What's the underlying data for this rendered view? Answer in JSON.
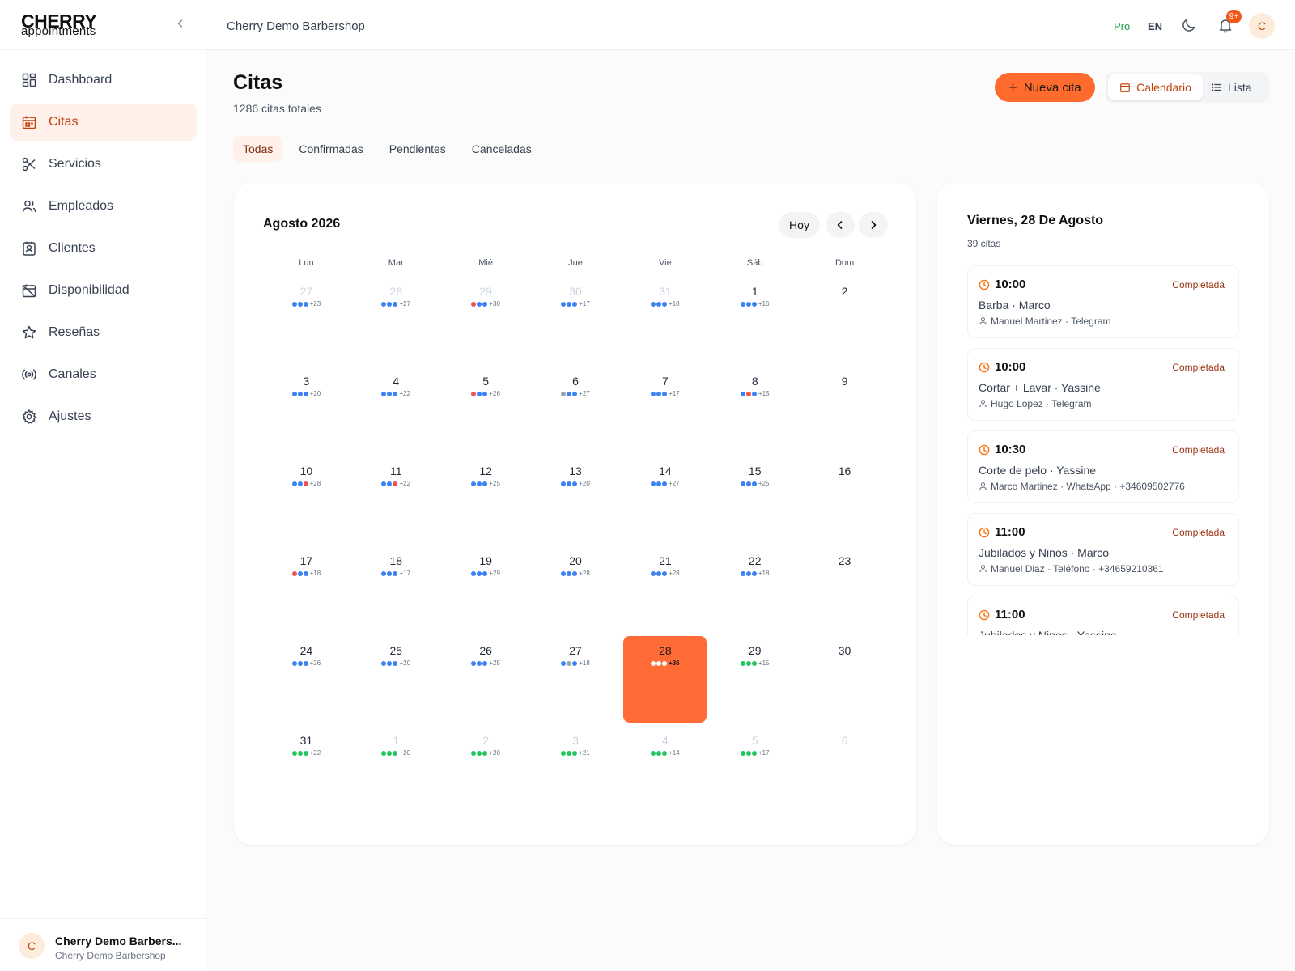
{
  "brand": {
    "logo_top": "CHERRY",
    "logo_bottom": "appointments"
  },
  "sidebar": {
    "items": [
      {
        "label": "Dashboard",
        "icon": "grid-icon"
      },
      {
        "label": "Citas",
        "icon": "calendar-icon"
      },
      {
        "label": "Servicios",
        "icon": "scissors-icon"
      },
      {
        "label": "Empleados",
        "icon": "users-icon"
      },
      {
        "label": "Clientes",
        "icon": "contact-icon"
      },
      {
        "label": "Disponibilidad",
        "icon": "calendar-off-icon"
      },
      {
        "label": "Reseñas",
        "icon": "star-icon"
      },
      {
        "label": "Canales",
        "icon": "broadcast-icon"
      },
      {
        "label": "Ajustes",
        "icon": "gear-icon"
      }
    ],
    "active_index": 1,
    "footer": {
      "avatar": "C",
      "name": "Cherry Demo Barbers...",
      "sub": "Cherry Demo Barbershop"
    }
  },
  "topbar": {
    "shop_name": "Cherry Demo Barbershop",
    "plan": "Pro",
    "lang": "EN",
    "notifications_badge": "9+",
    "avatar": "C"
  },
  "page": {
    "title": "Citas",
    "subtitle": "1286 citas totales",
    "new_button": "Nueva cita",
    "view_calendar": "Calendario",
    "view_list": "Lista"
  },
  "tabs": [
    "Todas",
    "Confirmadas",
    "Pendientes",
    "Canceladas"
  ],
  "active_tab": 0,
  "colors": {
    "accent": "#ff6b35",
    "blue": "#3b82f6",
    "red": "#f05252",
    "gray": "#9ca3af",
    "green": "#22c55e",
    "white": "#ffffff"
  },
  "calendar": {
    "month_label": "Agosto 2026",
    "today_button": "Hoy",
    "weekdays": [
      "Lun",
      "Mar",
      "Mié",
      "Jue",
      "Vie",
      "Sáb",
      "Dom"
    ],
    "days": [
      {
        "n": "27",
        "muted": true,
        "dots": [
          "blue",
          "blue",
          "blue"
        ],
        "more": "+23"
      },
      {
        "n": "28",
        "muted": true,
        "dots": [
          "blue",
          "blue",
          "blue"
        ],
        "more": "+27"
      },
      {
        "n": "29",
        "muted": true,
        "dots": [
          "red",
          "blue",
          "blue"
        ],
        "more": "+30"
      },
      {
        "n": "30",
        "muted": true,
        "dots": [
          "blue",
          "blue",
          "blue"
        ],
        "more": "+17"
      },
      {
        "n": "31",
        "muted": true,
        "dots": [
          "blue",
          "blue",
          "blue"
        ],
        "more": "+18"
      },
      {
        "n": "1",
        "muted": false,
        "dots": [
          "blue",
          "blue",
          "blue"
        ],
        "more": "+16"
      },
      {
        "n": "2",
        "muted": false,
        "dots": [],
        "more": ""
      },
      {
        "n": "3",
        "muted": false,
        "dots": [
          "blue",
          "blue",
          "blue"
        ],
        "more": "+20"
      },
      {
        "n": "4",
        "muted": false,
        "dots": [
          "blue",
          "blue",
          "blue"
        ],
        "more": "+22"
      },
      {
        "n": "5",
        "muted": false,
        "dots": [
          "red",
          "blue",
          "blue"
        ],
        "more": "+26"
      },
      {
        "n": "6",
        "muted": false,
        "dots": [
          "gray",
          "blue",
          "blue"
        ],
        "more": "+27"
      },
      {
        "n": "7",
        "muted": false,
        "dots": [
          "blue",
          "blue",
          "blue"
        ],
        "more": "+17"
      },
      {
        "n": "8",
        "muted": false,
        "dots": [
          "blue",
          "red",
          "blue"
        ],
        "more": "+15"
      },
      {
        "n": "9",
        "muted": false,
        "dots": [],
        "more": ""
      },
      {
        "n": "10",
        "muted": false,
        "dots": [
          "blue",
          "blue",
          "red"
        ],
        "more": "+28"
      },
      {
        "n": "11",
        "muted": false,
        "dots": [
          "blue",
          "blue",
          "red"
        ],
        "more": "+22"
      },
      {
        "n": "12",
        "muted": false,
        "dots": [
          "blue",
          "blue",
          "blue"
        ],
        "more": "+25"
      },
      {
        "n": "13",
        "muted": false,
        "dots": [
          "blue",
          "blue",
          "blue"
        ],
        "more": "+20"
      },
      {
        "n": "14",
        "muted": false,
        "dots": [
          "blue",
          "blue",
          "blue"
        ],
        "more": "+27"
      },
      {
        "n": "15",
        "muted": false,
        "dots": [
          "blue",
          "blue",
          "blue"
        ],
        "more": "+25"
      },
      {
        "n": "16",
        "muted": false,
        "dots": [],
        "more": ""
      },
      {
        "n": "17",
        "muted": false,
        "dots": [
          "red",
          "blue",
          "blue"
        ],
        "more": "+18"
      },
      {
        "n": "18",
        "muted": false,
        "dots": [
          "blue",
          "blue",
          "blue"
        ],
        "more": "+17"
      },
      {
        "n": "19",
        "muted": false,
        "dots": [
          "blue",
          "blue",
          "blue"
        ],
        "more": "+29"
      },
      {
        "n": "20",
        "muted": false,
        "dots": [
          "blue",
          "blue",
          "blue"
        ],
        "more": "+28"
      },
      {
        "n": "21",
        "muted": false,
        "dots": [
          "blue",
          "blue",
          "blue"
        ],
        "more": "+28"
      },
      {
        "n": "22",
        "muted": false,
        "dots": [
          "blue",
          "blue",
          "blue"
        ],
        "more": "+18"
      },
      {
        "n": "23",
        "muted": false,
        "dots": [],
        "more": ""
      },
      {
        "n": "24",
        "muted": false,
        "dots": [
          "blue",
          "blue",
          "blue"
        ],
        "more": "+26"
      },
      {
        "n": "25",
        "muted": false,
        "dots": [
          "blue",
          "blue",
          "blue"
        ],
        "more": "+20"
      },
      {
        "n": "26",
        "muted": false,
        "dots": [
          "blue",
          "blue",
          "blue"
        ],
        "more": "+25"
      },
      {
        "n": "27",
        "muted": false,
        "dots": [
          "blue",
          "gray",
          "blue"
        ],
        "more": "+18"
      },
      {
        "n": "28",
        "muted": false,
        "selected": true,
        "dots": [
          "white",
          "white",
          "white"
        ],
        "more": "+36"
      },
      {
        "n": "29",
        "muted": false,
        "dots": [
          "green",
          "green",
          "green"
        ],
        "more": "+15"
      },
      {
        "n": "30",
        "muted": false,
        "dots": [],
        "more": ""
      },
      {
        "n": "31",
        "muted": false,
        "dots": [
          "green",
          "green",
          "green"
        ],
        "more": "+22"
      },
      {
        "n": "1",
        "muted": true,
        "dots": [
          "green",
          "green",
          "green"
        ],
        "more": "+20"
      },
      {
        "n": "2",
        "muted": true,
        "dots": [
          "green",
          "green",
          "green"
        ],
        "more": "+20"
      },
      {
        "n": "3",
        "muted": true,
        "dots": [
          "green",
          "green",
          "green"
        ],
        "more": "+21"
      },
      {
        "n": "4",
        "muted": true,
        "dots": [
          "green",
          "green",
          "green"
        ],
        "more": "+14"
      },
      {
        "n": "5",
        "muted": true,
        "dots": [
          "green",
          "green",
          "green"
        ],
        "more": "+17"
      },
      {
        "n": "6",
        "muted": true,
        "dots": [],
        "more": ""
      }
    ]
  },
  "day_panel": {
    "title": "Viernes, 28 De Agosto",
    "count": "39 citas",
    "appointments": [
      {
        "time": "10:00",
        "status": "Completada",
        "service": "Barba · Marco",
        "meta": "Manuel Martinez · Telegram"
      },
      {
        "time": "10:00",
        "status": "Completada",
        "service": "Cortar + Lavar · Yassine",
        "meta": "Hugo Lopez · Telegram"
      },
      {
        "time": "10:30",
        "status": "Completada",
        "service": "Corte de pelo · Yassine",
        "meta": "Marco Martinez · WhatsApp · +34609502776"
      },
      {
        "time": "11:00",
        "status": "Completada",
        "service": "Jubilados y Ninos · Marco",
        "meta": "Manuel Diaz · Teléfono · +34659210361"
      },
      {
        "time": "11:00",
        "status": "Completada",
        "service": "Jubilados y Ninos · Yassine",
        "meta": ""
      }
    ]
  }
}
